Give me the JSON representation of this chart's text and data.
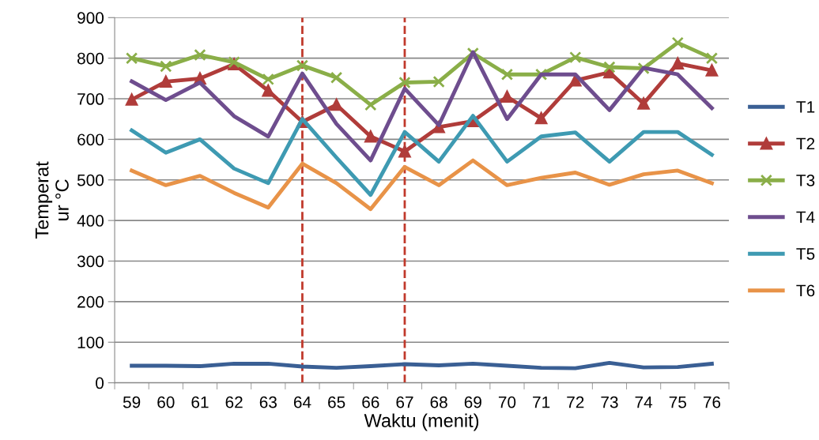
{
  "chart_data": {
    "type": "line",
    "xlabel": "Waktu (menit)",
    "ylabel": "Temperat\nur °C",
    "categories": [
      "59",
      "60",
      "61",
      "62",
      "63",
      "64",
      "65",
      "66",
      "67",
      "68",
      "69",
      "70",
      "71",
      "72",
      "73",
      "74",
      "75",
      "76"
    ],
    "series": [
      {
        "name": "T1",
        "color": "#3a5f94",
        "marker": "none",
        "values": [
          42,
          42,
          41,
          47,
          47,
          40,
          37,
          41,
          46,
          43,
          47,
          42,
          37,
          36,
          49,
          38,
          39,
          47
        ]
      },
      {
        "name": "T2",
        "color": "#b03c3a",
        "marker": "triangle",
        "values": [
          698,
          742,
          750,
          785,
          720,
          643,
          685,
          607,
          570,
          630,
          645,
          705,
          652,
          745,
          765,
          688,
          787,
          770
        ]
      },
      {
        "name": "T3",
        "color": "#8aae48",
        "marker": "cross",
        "values": [
          800,
          780,
          808,
          790,
          748,
          782,
          752,
          685,
          740,
          742,
          812,
          760,
          760,
          802,
          778,
          775,
          838,
          800
        ]
      },
      {
        "name": "T4",
        "color": "#6e4d8e",
        "marker": "none",
        "values": [
          743,
          697,
          740,
          657,
          607,
          762,
          638,
          548,
          725,
          635,
          815,
          650,
          760,
          760,
          672,
          776,
          760,
          677
        ]
      },
      {
        "name": "T5",
        "color": "#3e9ab2",
        "marker": "none",
        "values": [
          622,
          567,
          600,
          528,
          492,
          650,
          555,
          463,
          618,
          545,
          658,
          545,
          607,
          617,
          545,
          618,
          618,
          562
        ]
      },
      {
        "name": "T6",
        "color": "#e89348",
        "marker": "none",
        "values": [
          523,
          487,
          510,
          468,
          432,
          540,
          492,
          428,
          532,
          487,
          548,
          487,
          505,
          518,
          488,
          514,
          523,
          492
        ]
      }
    ],
    "ylim": [
      0,
      900
    ],
    "yticks": [
      0,
      100,
      200,
      300,
      400,
      500,
      600,
      700,
      800,
      900
    ],
    "grid": "y",
    "legend": "right",
    "ref_lines": [
      {
        "axis": "x",
        "value": "64",
        "color": "#c0392b",
        "line_style": "dashed"
      },
      {
        "axis": "x",
        "value": "67",
        "color": "#c0392b",
        "line_style": "dashed"
      }
    ]
  }
}
